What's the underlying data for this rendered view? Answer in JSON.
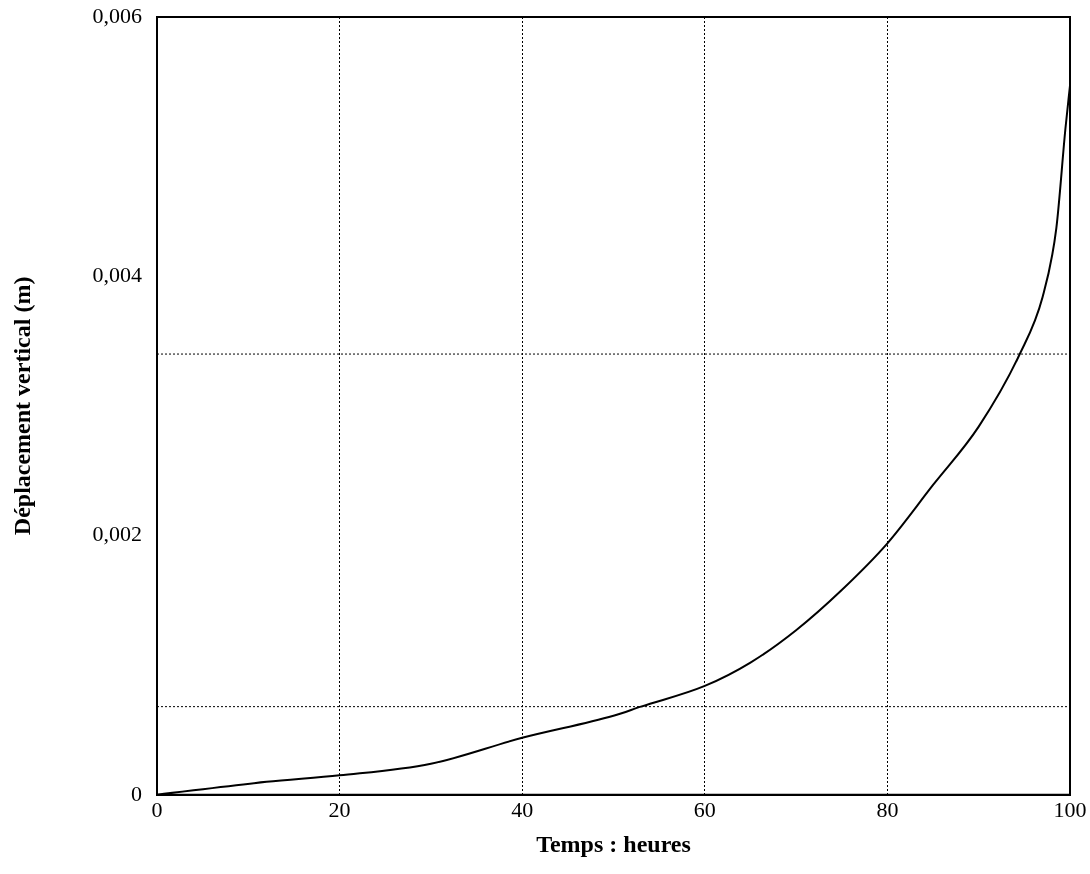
{
  "chart_data": {
    "type": "line",
    "xlabel": "Temps : heures",
    "ylabel": "Déplacement vertical (m)",
    "x": [
      0,
      12,
      20,
      30,
      40,
      50,
      53,
      60,
      65,
      70,
      75,
      80,
      85,
      90,
      94.5,
      97,
      98.5,
      99.5,
      100
    ],
    "series": [
      {
        "color": "#000000",
        "values": [
          0,
          0.0001,
          0.00015,
          0.00024,
          0.00044,
          0.00061,
          0.00068,
          0.00084,
          0.00102,
          0.00127,
          0.00158,
          0.00194,
          0.00239,
          0.00284,
          0.0034,
          0.00384,
          0.00437,
          0.00514,
          0.00547
        ]
      }
    ],
    "xlim": [
      0,
      100
    ],
    "xticks": [
      0,
      20,
      40,
      60,
      80,
      100
    ],
    "ylim": [
      0,
      0.006
    ],
    "yticks": [
      {
        "value": 0,
        "label": "0"
      },
      {
        "value": 0.002,
        "label": "0,002"
      },
      {
        "value": 0.004,
        "label": "0,004"
      },
      {
        "value": 0.006,
        "label": "0,006"
      }
    ],
    "grid": "x",
    "legend": false,
    "marker": "none",
    "line_style": "solid",
    "ref_lines": [
      {
        "axis": "y",
        "value": 0.00068,
        "line_style": "dotted"
      },
      {
        "axis": "y",
        "value": 0.0034,
        "line_style": "dotted"
      }
    ]
  }
}
